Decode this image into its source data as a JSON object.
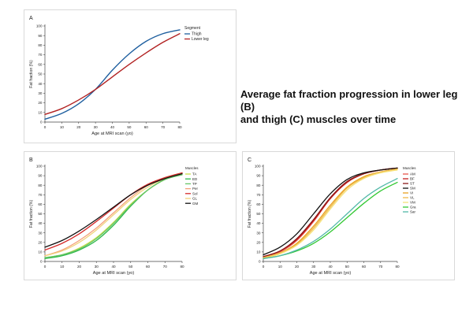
{
  "headline": {
    "line1": "Average fat fraction progression in lower leg (B)",
    "line2": "and thigh (C) muscles over time"
  },
  "chart_data": [
    {
      "id": "A",
      "type": "line",
      "panel_label": "A",
      "xlabel": "Age at MRI scan (yo)",
      "ylabel": "Fat fraction (%)",
      "xlim": [
        0,
        80
      ],
      "ylim": [
        0,
        100
      ],
      "xticks": [
        0,
        10,
        20,
        30,
        40,
        50,
        60,
        70,
        80
      ],
      "yticks": [
        0,
        10,
        20,
        30,
        40,
        50,
        60,
        70,
        80,
        90,
        100
      ],
      "grid": false,
      "legend": {
        "title": "Segment",
        "placement": "right"
      },
      "x": [
        0,
        10,
        20,
        30,
        40,
        50,
        60,
        70,
        80
      ],
      "series": [
        {
          "name": "Thigh",
          "color": "#1f5f9f",
          "values": [
            3,
            9,
            19,
            34,
            54,
            71,
            84,
            92,
            96
          ]
        },
        {
          "name": "Lower leg",
          "color": "#b22222",
          "values": [
            8,
            14,
            23,
            34,
            47,
            60,
            72,
            83,
            92
          ]
        }
      ]
    },
    {
      "id": "B",
      "type": "line",
      "panel_label": "B",
      "xlabel": "Age at MRI scan (yo)",
      "ylabel": "Fat fraction (%)",
      "xlim": [
        0,
        80
      ],
      "ylim": [
        0,
        100
      ],
      "xticks": [
        0,
        10,
        20,
        30,
        40,
        50,
        60,
        70,
        80
      ],
      "yticks": [
        0,
        10,
        20,
        30,
        40,
        50,
        60,
        70,
        80,
        90,
        100
      ],
      "grid": false,
      "legend": {
        "title": "Muscles",
        "placement": "right"
      },
      "x": [
        0,
        10,
        20,
        30,
        40,
        50,
        60,
        70,
        80
      ],
      "series": [
        {
          "name": "TA",
          "color": "#c8e04a",
          "values": [
            4,
            7,
            14,
            25,
            41,
            60,
            75,
            86,
            92
          ]
        },
        {
          "name": "ED",
          "color": "#2db84a",
          "values": [
            3,
            6,
            12,
            22,
            38,
            58,
            75,
            86,
            91
          ]
        },
        {
          "name": "TP",
          "color": "#66c566",
          "values": [
            4,
            7,
            13,
            24,
            40,
            59,
            75,
            86,
            91
          ]
        },
        {
          "name": "Per",
          "color": "#f4a07a",
          "values": [
            6,
            12,
            22,
            35,
            51,
            67,
            80,
            88,
            93
          ]
        },
        {
          "name": "Sol",
          "color": "#d42a2a",
          "values": [
            12,
            19,
            29,
            42,
            56,
            70,
            81,
            88,
            93
          ]
        },
        {
          "name": "GL",
          "color": "#f0d27a",
          "values": [
            6,
            11,
            20,
            33,
            49,
            65,
            78,
            87,
            92
          ]
        },
        {
          "name": "GM",
          "color": "#111111",
          "values": [
            15,
            22,
            32,
            44,
            57,
            70,
            80,
            87,
            92
          ]
        }
      ]
    },
    {
      "id": "C",
      "type": "line",
      "panel_label": "C",
      "xlabel": "Age at MRI scan (yo)",
      "ylabel": "Fat fraction (%)",
      "xlim": [
        0,
        80
      ],
      "ylim": [
        0,
        100
      ],
      "xticks": [
        0,
        10,
        20,
        30,
        40,
        50,
        60,
        70,
        80
      ],
      "yticks": [
        0,
        10,
        20,
        30,
        40,
        50,
        60,
        70,
        80,
        90,
        100
      ],
      "grid": false,
      "legend": {
        "title": "Muscles",
        "placement": "right"
      },
      "x": [
        0,
        10,
        20,
        30,
        40,
        50,
        60,
        70,
        80
      ],
      "series": [
        {
          "name": "AM",
          "color": "#e8564a",
          "values": [
            4,
            10,
            22,
            42,
            66,
            83,
            92,
            96,
            98
          ]
        },
        {
          "name": "BF",
          "color": "#c41e1e",
          "values": [
            5,
            11,
            23,
            43,
            66,
            83,
            92,
            96,
            98
          ]
        },
        {
          "name": "ST",
          "color": "#8b1a1a",
          "values": [
            5,
            11,
            24,
            44,
            67,
            84,
            92,
            96,
            98
          ]
        },
        {
          "name": "SM",
          "color": "#111111",
          "values": [
            7,
            15,
            29,
            50,
            71,
            86,
            93,
            96,
            98
          ]
        },
        {
          "name": "VI",
          "color": "#e8a020",
          "values": [
            4,
            9,
            19,
            37,
            59,
            78,
            89,
            94,
            97
          ]
        },
        {
          "name": "VL",
          "color": "#f0b848",
          "values": [
            4,
            9,
            18,
            35,
            57,
            77,
            88,
            94,
            97
          ]
        },
        {
          "name": "VM",
          "color": "#f5e27a",
          "values": [
            3,
            8,
            17,
            33,
            55,
            75,
            87,
            93,
            96
          ]
        },
        {
          "name": "Gra",
          "color": "#32c832",
          "values": [
            3,
            6,
            11,
            19,
            31,
            46,
            61,
            74,
            83
          ]
        },
        {
          "name": "Sar",
          "color": "#52b8a8",
          "values": [
            3,
            6,
            12,
            21,
            34,
            50,
            66,
            78,
            87
          ]
        }
      ]
    }
  ]
}
